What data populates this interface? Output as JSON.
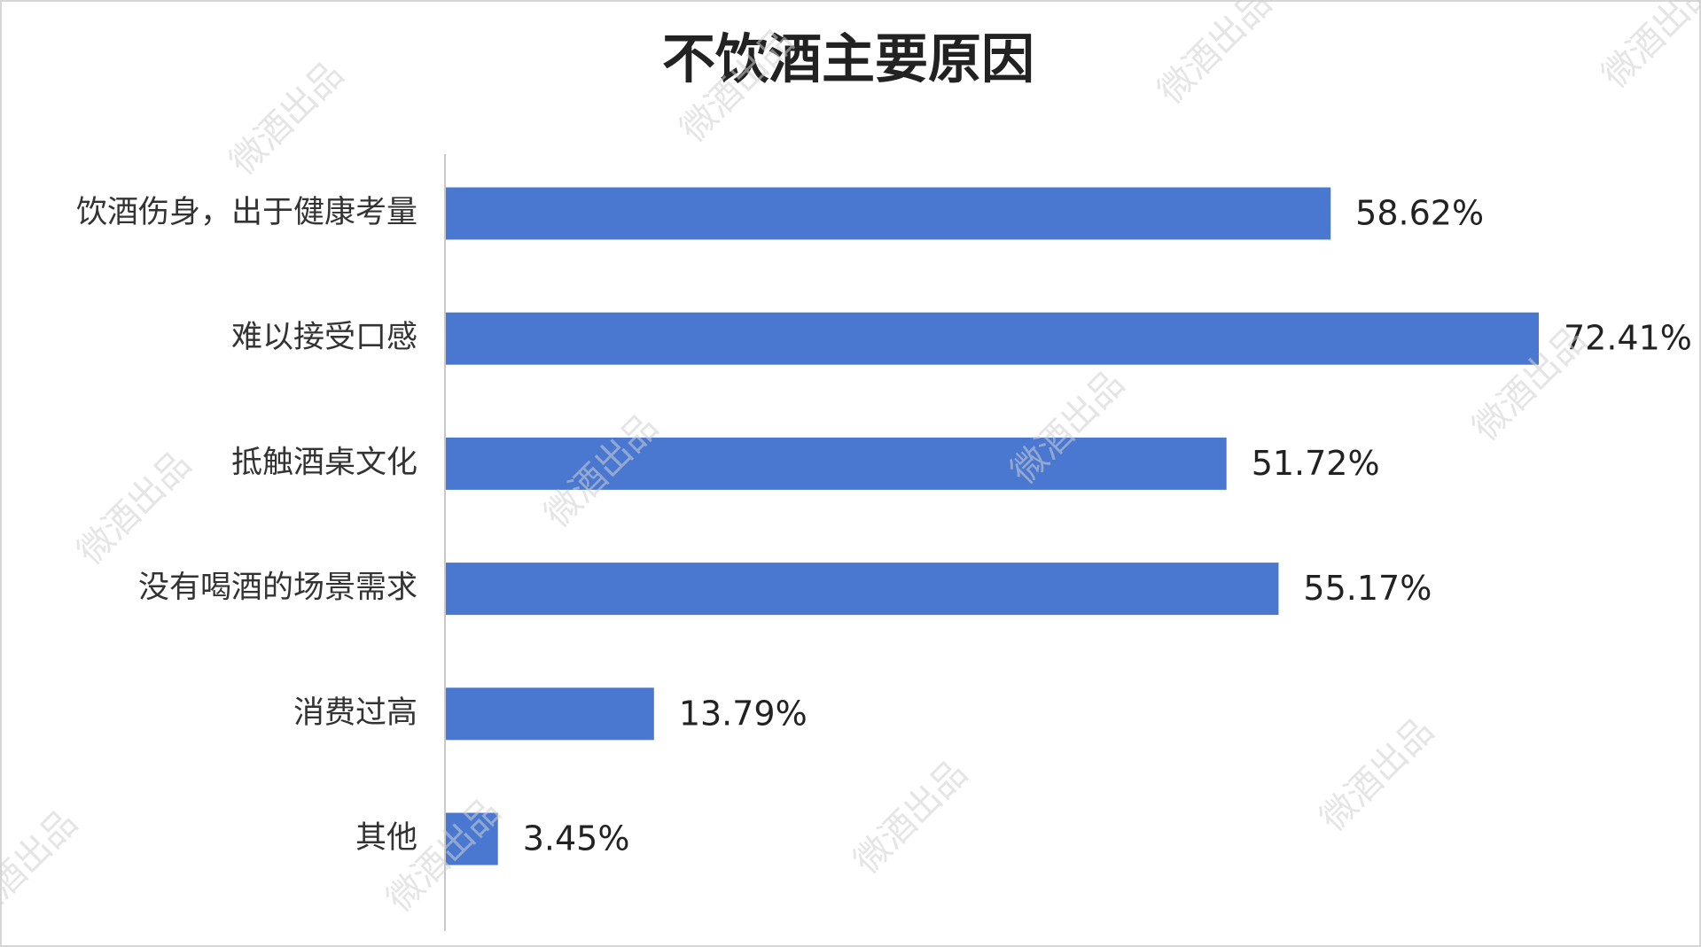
{
  "chart_data": {
    "type": "hbar",
    "title": "不饮酒主要原因",
    "categories": [
      "饮酒伤身，出于健康考量",
      "难以接受口感",
      "抵触酒桌文化",
      "没有喝酒的场景需求",
      "消费过高",
      "其他"
    ],
    "values": [
      58.62,
      72.41,
      51.72,
      55.17,
      13.79,
      3.45
    ],
    "value_labels": [
      "58.62%",
      "72.41%",
      "51.72%",
      "55.17%",
      "13.79%",
      "3.45%"
    ],
    "color": "#4a78d0"
  },
  "watermark": "微酒出品"
}
